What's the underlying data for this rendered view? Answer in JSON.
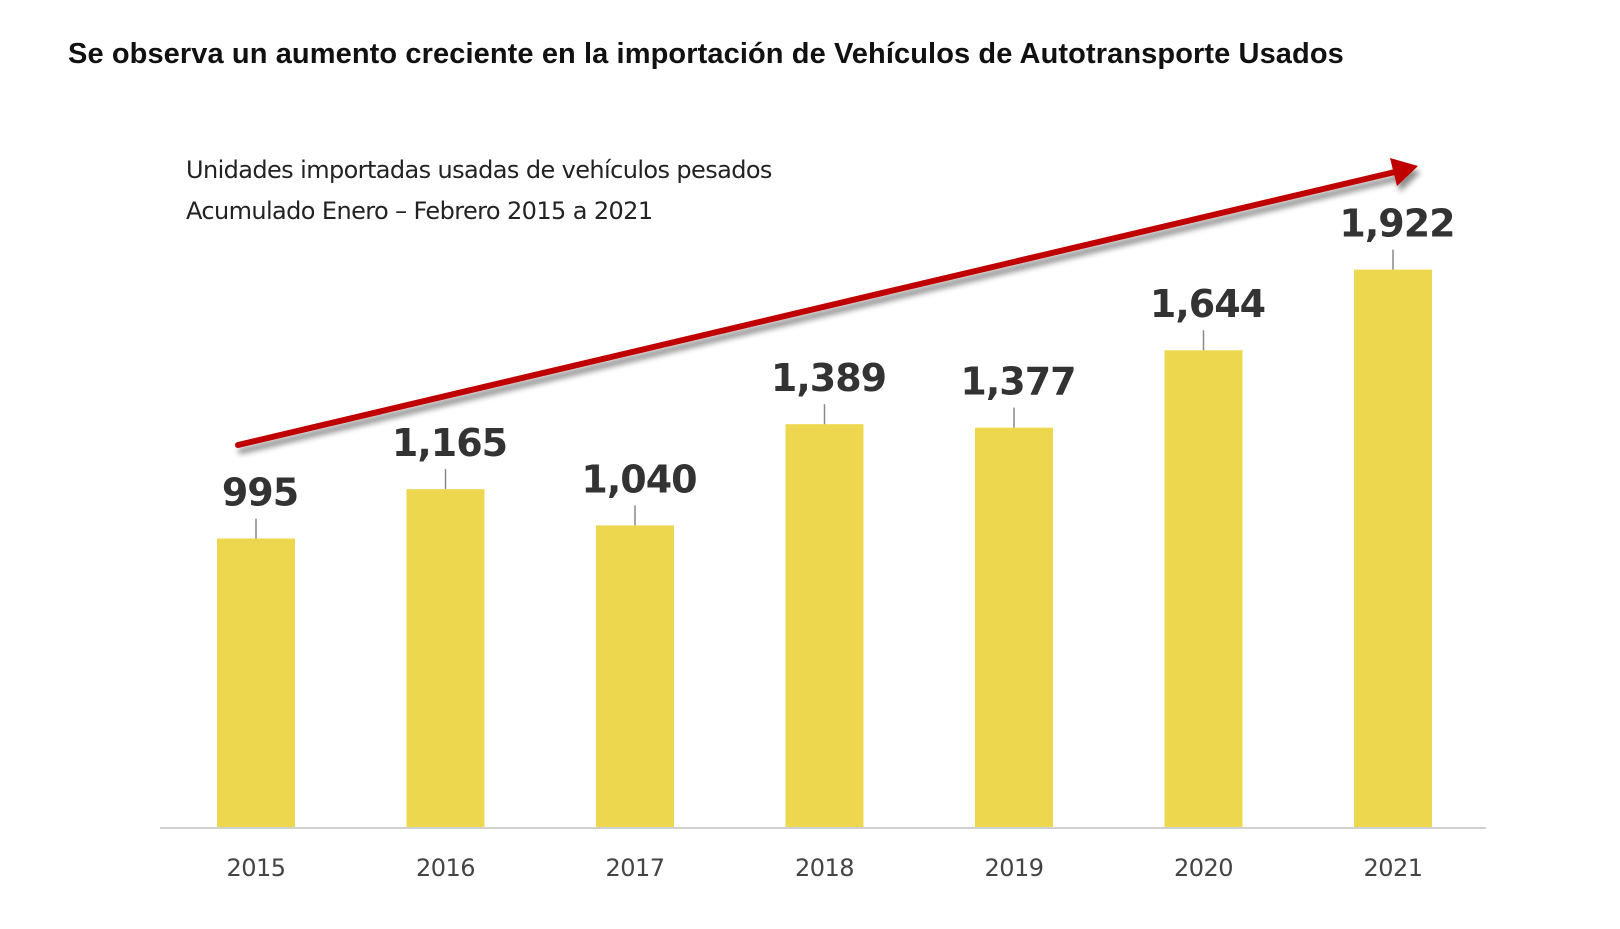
{
  "colors": {
    "bar": "#EDD74F",
    "arrow": "#C00000",
    "axis": "#D0D0D0",
    "leader": "#888888"
  },
  "chart_data": {
    "type": "bar",
    "title": "Se observa un aumento creciente en la importación de Vehículos de Autotransporte Usados",
    "subtitle": [
      "Unidades importadas usadas de vehículos pesados",
      "Acumulado Enero – Febrero 2015 a 2021"
    ],
    "xlabel": "",
    "ylabel": "",
    "categories": [
      "2015",
      "2016",
      "2017",
      "2018",
      "2019",
      "2020",
      "2021"
    ],
    "values": [
      995,
      1165,
      1040,
      1389,
      1377,
      1644,
      1922
    ],
    "data_labels": [
      "995",
      "1,165",
      "1,040",
      "1,389",
      "1,377",
      "1,644",
      "1,922"
    ],
    "ylim": [
      0,
      2000
    ],
    "grid": false,
    "legend": "none",
    "annotations": [
      {
        "type": "trend-arrow",
        "direction": "up",
        "from": "2015",
        "to": "2021"
      }
    ]
  }
}
